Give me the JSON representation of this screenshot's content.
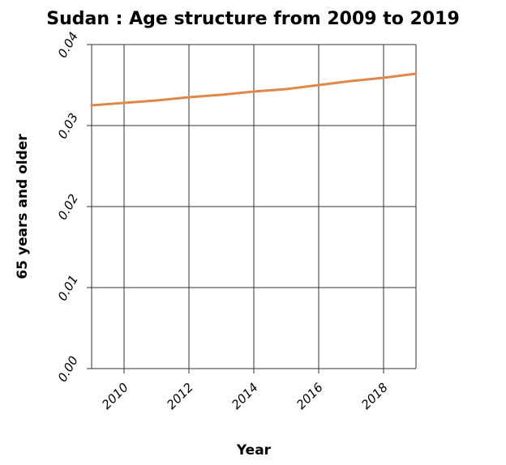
{
  "chart_data": {
    "type": "line",
    "title": "Sudan : Age structure from 2009 to 2019",
    "xlabel": "Year",
    "ylabel": "65 years and older",
    "xlim": [
      2009,
      2019
    ],
    "ylim": [
      0,
      0.04
    ],
    "x_ticks": [
      2010,
      2012,
      2014,
      2016,
      2018
    ],
    "y_ticks": [
      "0.00",
      "0.01",
      "0.02",
      "0.03",
      "0.04"
    ],
    "grid": true,
    "series": [
      {
        "color": "#E0884A",
        "x": [
          2009,
          2010,
          2011,
          2012,
          2013,
          2014,
          2015,
          2016,
          2017,
          2018,
          2019
        ],
        "values": [
          0.0325,
          0.0328,
          0.0331,
          0.0335,
          0.0338,
          0.0342,
          0.0345,
          0.035,
          0.0355,
          0.0359,
          0.0364
        ]
      }
    ]
  }
}
